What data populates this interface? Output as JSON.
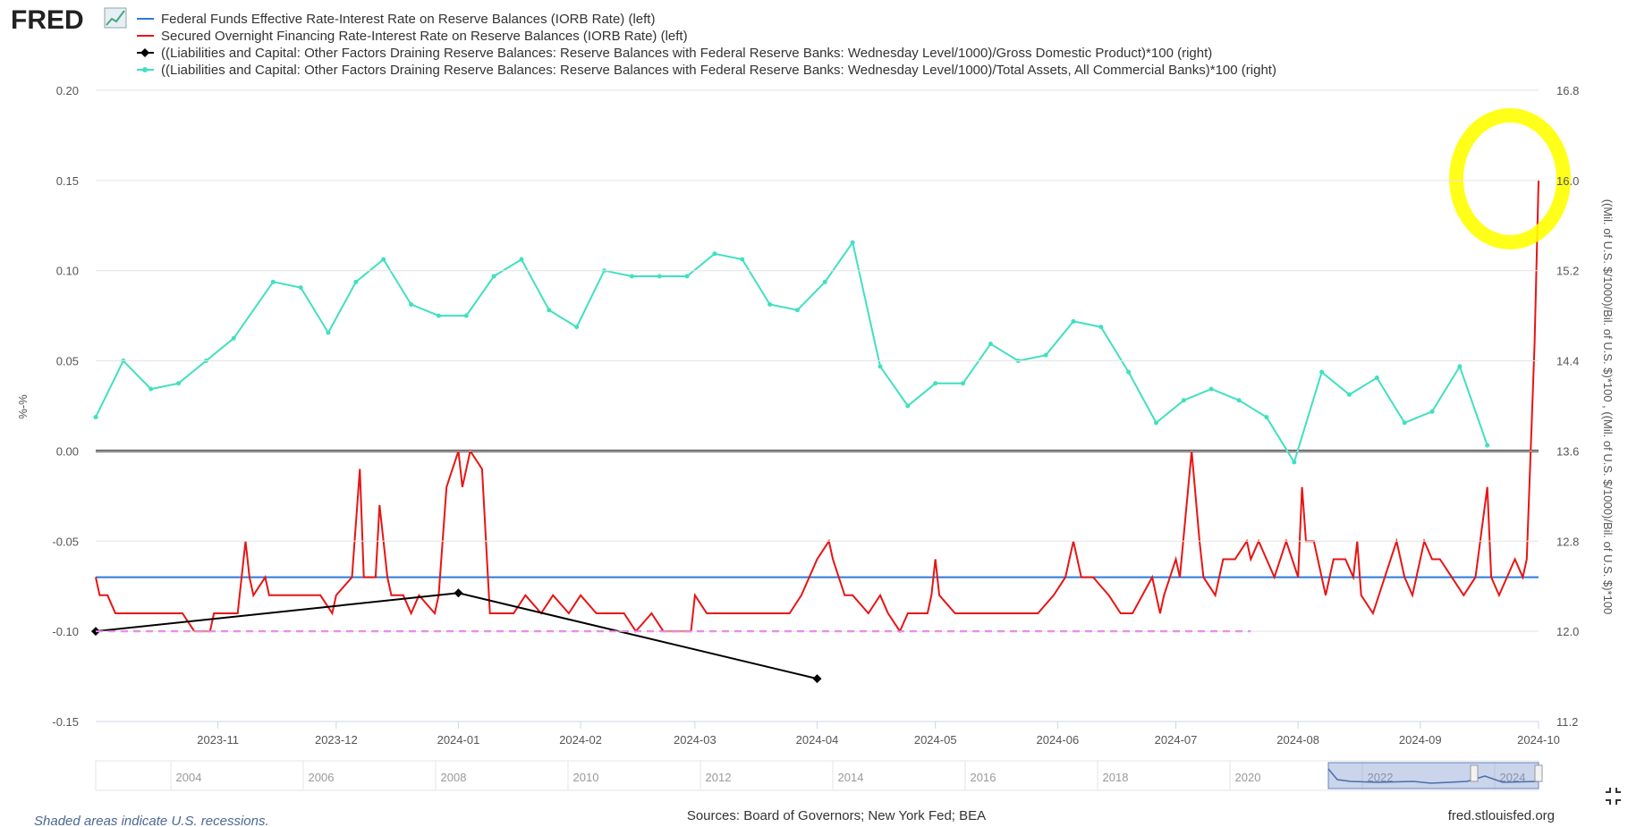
{
  "header": {
    "logo_text": "FRED"
  },
  "chart_data": {
    "type": "line",
    "y_left": {
      "label": "%-%",
      "ticks": [
        "0.20",
        "0.15",
        "0.10",
        "0.05",
        "0.00",
        "-0.05",
        "-0.10",
        "-0.15"
      ],
      "range": [
        -0.15,
        0.2
      ]
    },
    "y_right": {
      "label": "((Mil. of U.S. $/1000)/Bil. of U.S. $)*100 , ((Mil. of U.S. $/1000)/Bil. of U.S. $)*100",
      "ticks": [
        "16.8",
        "16.0",
        "15.2",
        "14.4",
        "13.6",
        "12.8",
        "12.0",
        "11.2"
      ],
      "range": [
        11.2,
        16.8
      ]
    },
    "x_ticks": [
      "2023-11",
      "2023-12",
      "2024-01",
      "2024-02",
      "2024-03",
      "2024-04",
      "2024-05",
      "2024-06",
      "2024-07",
      "2024-08",
      "2024-09",
      "2024-10"
    ],
    "x_range": [
      "2023-10-01",
      "2024-10-01"
    ],
    "grid": true,
    "legend_position": "top",
    "series": [
      {
        "name": "Federal Funds Effective Rate-Interest Rate on Reserve Balances (IORB Rate) (left)",
        "color": "#2e79d8",
        "axis": "left",
        "points": [
          [
            "2023-10-01",
            -0.07
          ],
          [
            "2024-10-01",
            -0.07
          ]
        ]
      },
      {
        "name": "Secured Overnight Financing Rate-Interest Rate on Reserve Balances (IORB Rate) (left)",
        "color": "#e81414",
        "axis": "left",
        "points": [
          [
            "2023-10-01",
            -0.07
          ],
          [
            "2023-10-02",
            -0.08
          ],
          [
            "2023-10-04",
            -0.08
          ],
          [
            "2023-10-06",
            -0.09
          ],
          [
            "2023-10-10",
            -0.09
          ],
          [
            "2023-10-13",
            -0.09
          ],
          [
            "2023-10-16",
            -0.09
          ],
          [
            "2023-10-19",
            -0.09
          ],
          [
            "2023-10-23",
            -0.09
          ],
          [
            "2023-10-26",
            -0.1
          ],
          [
            "2023-10-30",
            -0.1
          ],
          [
            "2023-10-31",
            -0.09
          ],
          [
            "2023-11-02",
            -0.09
          ],
          [
            "2023-11-03",
            -0.09
          ],
          [
            "2023-11-06",
            -0.09
          ],
          [
            "2023-11-08",
            -0.05
          ],
          [
            "2023-11-09",
            -0.07
          ],
          [
            "2023-11-10",
            -0.08
          ],
          [
            "2023-11-13",
            -0.07
          ],
          [
            "2023-11-14",
            -0.08
          ],
          [
            "2023-11-20",
            -0.08
          ],
          [
            "2023-11-27",
            -0.08
          ],
          [
            "2023-11-30",
            -0.09
          ],
          [
            "2023-12-01",
            -0.08
          ],
          [
            "2023-12-05",
            -0.07
          ],
          [
            "2023-12-07",
            -0.01
          ],
          [
            "2023-12-08",
            -0.07
          ],
          [
            "2023-12-11",
            -0.07
          ],
          [
            "2023-12-12",
            -0.03
          ],
          [
            "2023-12-14",
            -0.07
          ],
          [
            "2023-12-15",
            -0.08
          ],
          [
            "2023-12-18",
            -0.08
          ],
          [
            "2023-12-20",
            -0.09
          ],
          [
            "2023-12-22",
            -0.08
          ],
          [
            "2023-12-26",
            -0.09
          ],
          [
            "2023-12-27",
            -0.08
          ],
          [
            "2023-12-28",
            -0.05
          ],
          [
            "2023-12-29",
            -0.02
          ],
          [
            "2024-01-01",
            0.0
          ],
          [
            "2024-01-02",
            -0.02
          ],
          [
            "2024-01-04",
            0.0
          ],
          [
            "2024-01-07",
            -0.01
          ],
          [
            "2024-01-09",
            -0.09
          ],
          [
            "2024-01-12",
            -0.09
          ],
          [
            "2024-01-15",
            -0.09
          ],
          [
            "2024-01-18",
            -0.08
          ],
          [
            "2024-01-22",
            -0.09
          ],
          [
            "2024-01-25",
            -0.08
          ],
          [
            "2024-01-29",
            -0.09
          ],
          [
            "2024-02-01",
            -0.08
          ],
          [
            "2024-02-05",
            -0.09
          ],
          [
            "2024-02-08",
            -0.09
          ],
          [
            "2024-02-12",
            -0.09
          ],
          [
            "2024-02-15",
            -0.1
          ],
          [
            "2024-02-19",
            -0.09
          ],
          [
            "2024-02-22",
            -0.1
          ],
          [
            "2024-02-26",
            -0.1
          ],
          [
            "2024-02-29",
            -0.1
          ],
          [
            "2024-03-01",
            -0.08
          ],
          [
            "2024-03-04",
            -0.09
          ],
          [
            "2024-03-08",
            -0.09
          ],
          [
            "2024-03-12",
            -0.09
          ],
          [
            "2024-03-15",
            -0.09
          ],
          [
            "2024-03-20",
            -0.09
          ],
          [
            "2024-03-25",
            -0.09
          ],
          [
            "2024-03-28",
            -0.08
          ],
          [
            "2024-04-01",
            -0.06
          ],
          [
            "2024-04-04",
            -0.05
          ],
          [
            "2024-04-05",
            -0.06
          ],
          [
            "2024-04-08",
            -0.08
          ],
          [
            "2024-04-10",
            -0.08
          ],
          [
            "2024-04-14",
            -0.09
          ],
          [
            "2024-04-17",
            -0.08
          ],
          [
            "2024-04-19",
            -0.09
          ],
          [
            "2024-04-22",
            -0.1
          ],
          [
            "2024-04-24",
            -0.09
          ],
          [
            "2024-04-29",
            -0.09
          ],
          [
            "2024-04-30",
            -0.08
          ],
          [
            "2024-05-01",
            -0.06
          ],
          [
            "2024-05-02",
            -0.08
          ],
          [
            "2024-05-06",
            -0.09
          ],
          [
            "2024-05-10",
            -0.09
          ],
          [
            "2024-05-16",
            -0.09
          ],
          [
            "2024-05-22",
            -0.09
          ],
          [
            "2024-05-27",
            -0.09
          ],
          [
            "2024-05-31",
            -0.08
          ],
          [
            "2024-06-03",
            -0.07
          ],
          [
            "2024-06-05",
            -0.05
          ],
          [
            "2024-06-07",
            -0.07
          ],
          [
            "2024-06-10",
            -0.07
          ],
          [
            "2024-06-14",
            -0.08
          ],
          [
            "2024-06-17",
            -0.09
          ],
          [
            "2024-06-20",
            -0.09
          ],
          [
            "2024-06-25",
            -0.07
          ],
          [
            "2024-06-27",
            -0.09
          ],
          [
            "2024-06-28",
            -0.08
          ],
          [
            "2024-07-01",
            -0.06
          ],
          [
            "2024-07-02",
            -0.07
          ],
          [
            "2024-07-05",
            0.0
          ],
          [
            "2024-07-07",
            -0.05
          ],
          [
            "2024-07-08",
            -0.07
          ],
          [
            "2024-07-11",
            -0.08
          ],
          [
            "2024-07-13",
            -0.06
          ],
          [
            "2024-07-16",
            -0.06
          ],
          [
            "2024-07-19",
            -0.05
          ],
          [
            "2024-07-20",
            -0.06
          ],
          [
            "2024-07-22",
            -0.05
          ],
          [
            "2024-07-24",
            -0.06
          ],
          [
            "2024-07-26",
            -0.07
          ],
          [
            "2024-07-29",
            -0.05
          ],
          [
            "2024-08-01",
            -0.07
          ],
          [
            "2024-08-02",
            -0.02
          ],
          [
            "2024-08-03",
            -0.05
          ],
          [
            "2024-08-05",
            -0.05
          ],
          [
            "2024-08-08",
            -0.08
          ],
          [
            "2024-08-10",
            -0.06
          ],
          [
            "2024-08-13",
            -0.06
          ],
          [
            "2024-08-15",
            -0.07
          ],
          [
            "2024-08-16",
            -0.05
          ],
          [
            "2024-08-17",
            -0.08
          ],
          [
            "2024-08-20",
            -0.09
          ],
          [
            "2024-08-23",
            -0.07
          ],
          [
            "2024-08-26",
            -0.05
          ],
          [
            "2024-08-28",
            -0.07
          ],
          [
            "2024-08-30",
            -0.08
          ],
          [
            "2024-09-02",
            -0.05
          ],
          [
            "2024-09-04",
            -0.06
          ],
          [
            "2024-09-06",
            -0.06
          ],
          [
            "2024-09-09",
            -0.07
          ],
          [
            "2024-09-12",
            -0.08
          ],
          [
            "2024-09-15",
            -0.07
          ],
          [
            "2024-09-18",
            -0.02
          ],
          [
            "2024-09-19",
            -0.07
          ],
          [
            "2024-09-21",
            -0.08
          ],
          [
            "2024-09-23",
            -0.07
          ],
          [
            "2024-09-25",
            -0.06
          ],
          [
            "2024-09-27",
            -0.07
          ],
          [
            "2024-09-28",
            -0.06
          ],
          [
            "2024-09-30",
            0.06
          ],
          [
            "2024-10-01",
            0.15
          ]
        ]
      },
      {
        "name": "((Liabilities and Capital: Other Factors Draining Reserve Balances: Reserve Balances with Federal Reserve Banks: Wednesday Level/1000)/Gross Domestic Product)*100 (right)",
        "color": "#000000",
        "axis": "right",
        "marker": "diamond",
        "points": [
          [
            "2023-10-01",
            12.0
          ],
          [
            "2024-01-01",
            12.34
          ],
          [
            "2024-04-01",
            11.58
          ]
        ]
      },
      {
        "name": "((Liabilities and Capital: Other Factors Draining Reserve Balances: Reserve Balances with Federal Reserve Banks: Wednesday Level/1000)/Total Assets, All Commercial Banks)*100 (right)",
        "color": "#40e0c0",
        "axis": "right",
        "marker": "circle",
        "points": [
          [
            "2023-10-01",
            13.9
          ],
          [
            "2023-10-08",
            14.4
          ],
          [
            "2023-10-15",
            14.15
          ],
          [
            "2023-10-22",
            14.2
          ],
          [
            "2023-10-29",
            14.4
          ],
          [
            "2023-11-05",
            14.6
          ],
          [
            "2023-11-15",
            15.1
          ],
          [
            "2023-11-22",
            15.05
          ],
          [
            "2023-11-29",
            14.65
          ],
          [
            "2023-12-06",
            15.1
          ],
          [
            "2023-12-13",
            15.3
          ],
          [
            "2023-12-20",
            14.9
          ],
          [
            "2023-12-27",
            14.8
          ],
          [
            "2024-01-03",
            14.8
          ],
          [
            "2024-01-10",
            15.15
          ],
          [
            "2024-01-17",
            15.3
          ],
          [
            "2024-01-24",
            14.85
          ],
          [
            "2024-01-31",
            14.7
          ],
          [
            "2024-02-07",
            15.2
          ],
          [
            "2024-02-14",
            15.15
          ],
          [
            "2024-02-21",
            15.15
          ],
          [
            "2024-02-28",
            15.15
          ],
          [
            "2024-03-06",
            15.35
          ],
          [
            "2024-03-13",
            15.3
          ],
          [
            "2024-03-20",
            14.9
          ],
          [
            "2024-03-27",
            14.85
          ],
          [
            "2024-04-03",
            15.1
          ],
          [
            "2024-04-10",
            15.45
          ],
          [
            "2024-04-17",
            14.35
          ],
          [
            "2024-04-24",
            14.0
          ],
          [
            "2024-05-01",
            14.2
          ],
          [
            "2024-05-08",
            14.2
          ],
          [
            "2024-05-15",
            14.55
          ],
          [
            "2024-05-22",
            14.4
          ],
          [
            "2024-05-29",
            14.45
          ],
          [
            "2024-06-05",
            14.75
          ],
          [
            "2024-06-12",
            14.7
          ],
          [
            "2024-06-19",
            14.3
          ],
          [
            "2024-06-26",
            13.85
          ],
          [
            "2024-07-03",
            14.05
          ],
          [
            "2024-07-10",
            14.15
          ],
          [
            "2024-07-17",
            14.05
          ],
          [
            "2024-07-24",
            13.9
          ],
          [
            "2024-07-31",
            13.5
          ],
          [
            "2024-08-07",
            14.3
          ],
          [
            "2024-08-14",
            14.1
          ],
          [
            "2024-08-21",
            14.25
          ],
          [
            "2024-08-28",
            13.85
          ],
          [
            "2024-09-04",
            13.95
          ],
          [
            "2024-09-11",
            14.35
          ],
          [
            "2024-09-18",
            13.65
          ]
        ]
      },
      {
        "name": "",
        "color": "#e020e0",
        "axis": "left",
        "style": "dashed",
        "points": [
          [
            "2023-10-01",
            -0.1
          ],
          [
            "2024-07-20",
            -0.1
          ]
        ]
      }
    ],
    "navigator": {
      "ticks": [
        "2004",
        "2006",
        "2008",
        "2010",
        "2012",
        "2014",
        "2016",
        "2018",
        "2020",
        "2022",
        "2024"
      ]
    },
    "annotation": {
      "type": "highlight-circle",
      "color": "#ffff00"
    }
  },
  "footer": {
    "recession_note": "Shaded areas indicate U.S. recessions.",
    "sources": "Sources: Board of Governors; New York Fed; BEA",
    "site": "fred.stlouisfed.org"
  }
}
